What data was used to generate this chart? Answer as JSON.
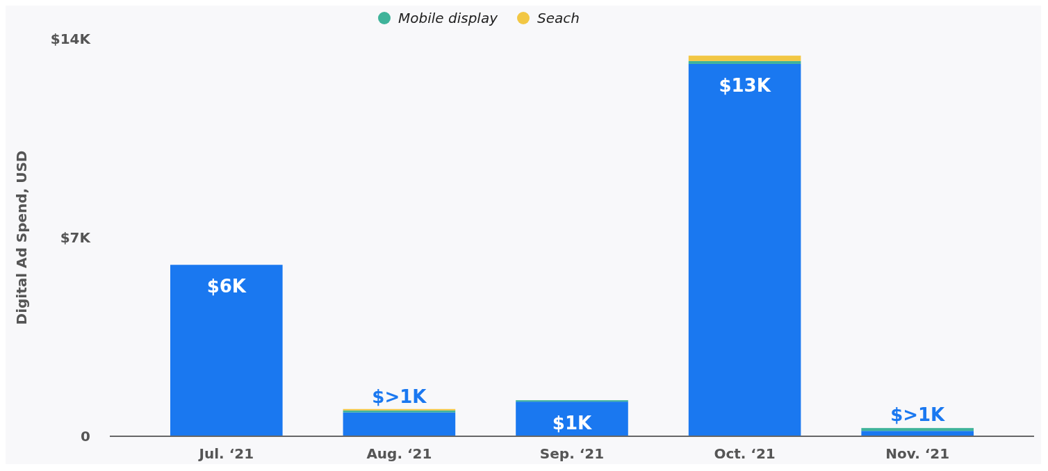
{
  "chart_data": {
    "type": "bar",
    "stacked": true,
    "ylabel": "Digital Ad Spend, USD",
    "categories": [
      "Jul. ‘21",
      "Aug. ‘21",
      "Sep. ‘21",
      "Oct. ‘21",
      "Nov. ‘21"
    ],
    "ylim": [
      0,
      14
    ],
    "yticks": [
      {
        "value": 0,
        "label": "0"
      },
      {
        "value": 7,
        "label": "$7K"
      },
      {
        "value": 14,
        "label": "$14K"
      }
    ],
    "series": [
      {
        "color": "#1a78f0",
        "values": [
          6.04,
          0.84,
          1.22,
          13.12,
          0.19
        ],
        "value_labels": [
          "$6K",
          "$>1K",
          "$1K",
          "$13K",
          "$>1K"
        ]
      },
      {
        "name": "Mobile display",
        "color": "#3fb39a",
        "values": [
          0,
          0.07,
          0.05,
          0.1,
          0.1
        ]
      },
      {
        "name": "Seach",
        "color": "#f2c744",
        "values": [
          0,
          0.05,
          0,
          0.19,
          0
        ]
      }
    ],
    "legend": "top",
    "grid": false
  }
}
